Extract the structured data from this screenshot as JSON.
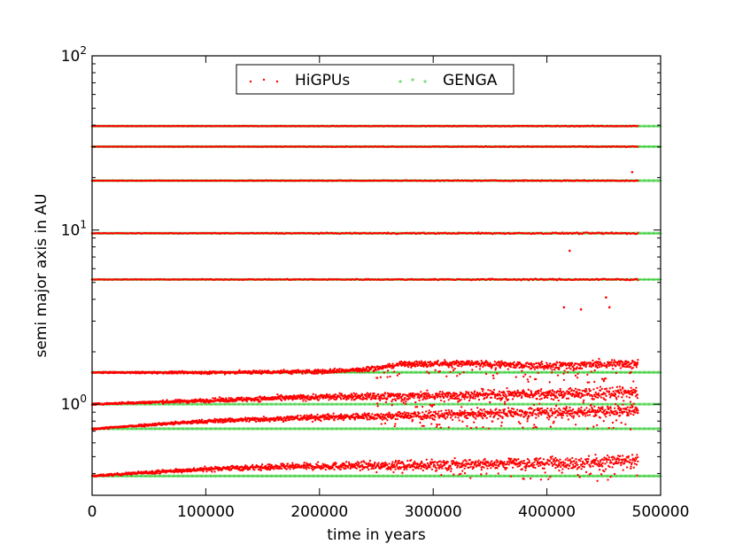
{
  "chart_data": {
    "type": "scatter",
    "title": "",
    "xlabel": "time in years",
    "ylabel": "semi major axis in AU",
    "xlim": [
      0,
      500000
    ],
    "ylim": [
      0.3,
      100
    ],
    "yscale": "log",
    "grid": false,
    "legend_position": "top-center",
    "x_ticks": [
      {
        "value": 0,
        "label": "0"
      },
      {
        "value": 100000,
        "label": "100000"
      },
      {
        "value": 200000,
        "label": "200000"
      },
      {
        "value": 300000,
        "label": "300000"
      },
      {
        "value": 400000,
        "label": "400000"
      },
      {
        "value": 500000,
        "label": "500000"
      }
    ],
    "y_ticks": [
      {
        "value": 1,
        "base": "10",
        "exp": "0"
      },
      {
        "value": 10,
        "base": "10",
        "exp": "1"
      },
      {
        "value": 100,
        "base": "10",
        "exp": "2"
      }
    ],
    "series": [
      {
        "name": "HiGPUs",
        "color": "#ff0000",
        "marker": "dot",
        "orbits": [
          {
            "t_end": 480000,
            "points": [
              [
                0,
                0.387
              ],
              [
                60000,
                0.41
              ],
              [
                120000,
                0.43
              ],
              [
                200000,
                0.44
              ],
              [
                300000,
                0.45
              ],
              [
                400000,
                0.46
              ],
              [
                480000,
                0.47
              ]
            ]
          },
          {
            "t_end": 480000,
            "points": [
              [
                0,
                0.72
              ],
              [
                60000,
                0.77
              ],
              [
                120000,
                0.81
              ],
              [
                200000,
                0.84
              ],
              [
                300000,
                0.87
              ],
              [
                400000,
                0.9
              ],
              [
                480000,
                0.92
              ]
            ]
          },
          {
            "t_end": 480000,
            "points": [
              [
                0,
                1.0
              ],
              [
                60000,
                1.03
              ],
              [
                120000,
                1.06
              ],
              [
                200000,
                1.1
              ],
              [
                300000,
                1.12
              ],
              [
                400000,
                1.15
              ],
              [
                480000,
                1.17
              ]
            ]
          },
          {
            "t_end": 480000,
            "points": [
              [
                0,
                1.52
              ],
              [
                100000,
                1.52
              ],
              [
                200000,
                1.54
              ],
              [
                240000,
                1.58
              ],
              [
                280000,
                1.72
              ],
              [
                350000,
                1.7
              ],
              [
                400000,
                1.66
              ],
              [
                480000,
                1.72
              ]
            ]
          },
          {
            "t_end": 480000,
            "points": [
              [
                0,
                5.2
              ],
              [
                480000,
                5.2
              ]
            ]
          },
          {
            "t_end": 480000,
            "points": [
              [
                0,
                9.58
              ],
              [
                480000,
                9.58
              ]
            ]
          },
          {
            "t_end": 480000,
            "points": [
              [
                0,
                19.2
              ],
              [
                480000,
                19.2
              ]
            ]
          },
          {
            "t_end": 480000,
            "points": [
              [
                0,
                30.1
              ],
              [
                480000,
                30.1
              ]
            ]
          },
          {
            "t_end": 480000,
            "points": [
              [
                0,
                39.5
              ],
              [
                480000,
                39.5
              ]
            ]
          }
        ]
      },
      {
        "name": "GENGA",
        "color": "#33cc33",
        "marker": "plus",
        "orbits": [
          {
            "t_end": 500000,
            "points": [
              [
                0,
                0.387
              ],
              [
                500000,
                0.387
              ]
            ]
          },
          {
            "t_end": 500000,
            "points": [
              [
                0,
                0.723
              ],
              [
                500000,
                0.723
              ]
            ]
          },
          {
            "t_end": 500000,
            "points": [
              [
                0,
                1.0
              ],
              [
                500000,
                1.0
              ]
            ]
          },
          {
            "t_end": 500000,
            "points": [
              [
                0,
                1.524
              ],
              [
                500000,
                1.524
              ]
            ]
          },
          {
            "t_end": 500000,
            "points": [
              [
                0,
                5.2
              ],
              [
                500000,
                5.2
              ]
            ]
          },
          {
            "t_end": 500000,
            "points": [
              [
                0,
                9.58
              ],
              [
                500000,
                9.58
              ]
            ]
          },
          {
            "t_end": 500000,
            "points": [
              [
                0,
                19.2
              ],
              [
                500000,
                19.2
              ]
            ]
          },
          {
            "t_end": 500000,
            "points": [
              [
                0,
                30.1
              ],
              [
                500000,
                30.1
              ]
            ]
          },
          {
            "t_end": 500000,
            "points": [
              [
                0,
                39.5
              ],
              [
                500000,
                39.5
              ]
            ]
          }
        ]
      }
    ],
    "outliers": [
      {
        "x": 420000,
        "y": 7.6
      },
      {
        "x": 415000,
        "y": 3.6
      },
      {
        "x": 430000,
        "y": 3.5
      },
      {
        "x": 452000,
        "y": 4.1
      },
      {
        "x": 455000,
        "y": 3.6
      },
      {
        "x": 475000,
        "y": 21.5
      }
    ]
  }
}
